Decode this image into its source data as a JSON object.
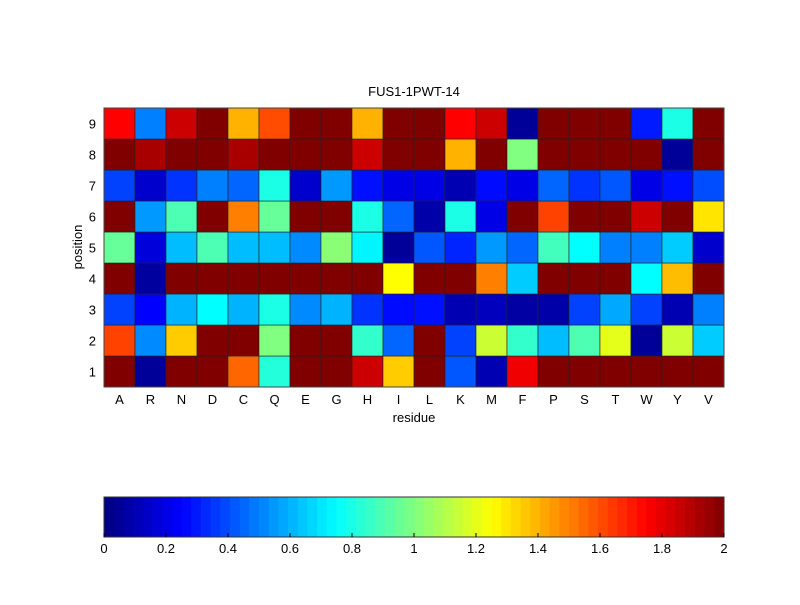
{
  "chart_data": {
    "type": "heatmap",
    "title": "FUS1-1PWT-14",
    "xlabel": "residue",
    "ylabel": "position",
    "x_categories": [
      "A",
      "R",
      "N",
      "D",
      "C",
      "Q",
      "E",
      "G",
      "H",
      "I",
      "L",
      "K",
      "M",
      "F",
      "P",
      "S",
      "T",
      "W",
      "Y",
      "V"
    ],
    "y_categories": [
      "1",
      "2",
      "3",
      "4",
      "5",
      "6",
      "7",
      "8",
      "9"
    ],
    "colormap": "jet",
    "clim": [
      0,
      2
    ],
    "colorbar": {
      "placement": "bottom",
      "ticks": [
        "0",
        "0.2",
        "0.4",
        "0.6",
        "0.8",
        "1",
        "1.2",
        "1.4",
        "1.6",
        "1.8",
        "2"
      ]
    },
    "values": [
      [
        2,
        0.05,
        2,
        2,
        1.55,
        0.82,
        2,
        2,
        1.85,
        1.35,
        2,
        0.42,
        0.1,
        1.78,
        2,
        2,
        2,
        2,
        2,
        2
      ],
      [
        1.62,
        0.52,
        1.35,
        2,
        2,
        1.0,
        2,
        2,
        0.85,
        0.45,
        2,
        0.38,
        1.15,
        0.85,
        0.62,
        0.9,
        1.2,
        0.05,
        1.15,
        0.65
      ],
      [
        0.38,
        0.25,
        0.6,
        0.75,
        0.6,
        0.8,
        0.52,
        0.6,
        0.35,
        0.27,
        0.28,
        0.1,
        0.12,
        0.07,
        0.08,
        0.38,
        0.58,
        0.38,
        0.1,
        0.5
      ],
      [
        2,
        0.06,
        2,
        2,
        2,
        2,
        2,
        2,
        2,
        1.25,
        2,
        2,
        1.5,
        0.65,
        2,
        2,
        2,
        0.75,
        1.38,
        2
      ],
      [
        0.95,
        0.18,
        0.62,
        0.9,
        0.62,
        0.62,
        0.52,
        1.02,
        0.73,
        0.05,
        0.42,
        0.32,
        0.55,
        0.45,
        0.88,
        0.75,
        0.5,
        0.5,
        0.65,
        0.15
      ],
      [
        2,
        0.55,
        0.9,
        2,
        1.5,
        0.95,
        2,
        2,
        0.8,
        0.45,
        0.08,
        0.8,
        0.2,
        2,
        1.62,
        2,
        2,
        1.85,
        2,
        1.3
      ],
      [
        0.38,
        0.15,
        0.35,
        0.5,
        0.45,
        0.8,
        0.15,
        0.55,
        0.28,
        0.2,
        0.2,
        0.1,
        0.27,
        0.2,
        0.45,
        0.35,
        0.42,
        0.2,
        0.28,
        0.4
      ],
      [
        2,
        1.92,
        2,
        2,
        1.92,
        2,
        2,
        2,
        1.85,
        2,
        2,
        1.4,
        2,
        1.0,
        2,
        2,
        2,
        2,
        0.05,
        2
      ],
      [
        1.75,
        0.5,
        1.85,
        2,
        1.4,
        1.6,
        2,
        2,
        1.4,
        2,
        2,
        1.75,
        1.85,
        0.05,
        2,
        2,
        2,
        0.3,
        0.8,
        2
      ]
    ]
  }
}
